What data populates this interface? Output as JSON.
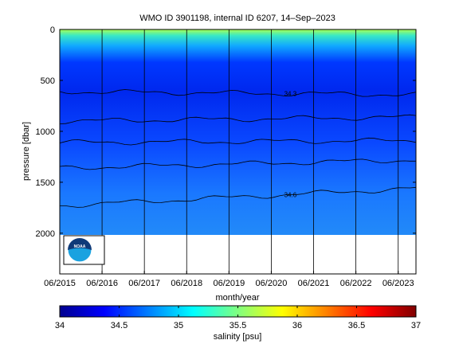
{
  "chart_data": {
    "type": "heatmap",
    "title": "WMO ID 3901198, internal ID 6207, 14–Sep–2023",
    "xlabel": "month/year",
    "ylabel": "pressure [dbar]",
    "x_ticks": [
      "06/2015",
      "06/2016",
      "06/2017",
      "06/2018",
      "06/2019",
      "06/2020",
      "06/2021",
      "06/2022",
      "06/2023"
    ],
    "x_tick_years": [
      2015.42,
      2016.42,
      2017.42,
      2018.42,
      2019.42,
      2020.42,
      2021.42,
      2022.42,
      2023.42
    ],
    "xlim": [
      2015.42,
      2023.84
    ],
    "y_ticks": [
      0,
      500,
      1000,
      1500,
      2000
    ],
    "ylim": [
      2400,
      0
    ],
    "y_reversed": true,
    "grid": "vertical lines at x ticks",
    "colorbar": {
      "label": "salinity [psu]",
      "range": [
        34,
        37
      ],
      "ticks": [
        "34",
        "34.5",
        "35",
        "35.5",
        "36",
        "36.5",
        "37"
      ],
      "colormap": "jet"
    },
    "profile_max_pressure": 2000,
    "contour_lines": [
      {
        "level": 34.3,
        "label": "34.3",
        "pressure_at_start": 610,
        "pressure_at_end": 640
      },
      {
        "level": 34.35,
        "label": "",
        "pressure_at_start": 900,
        "pressure_at_end": 860
      },
      {
        "level": 34.4,
        "label": "",
        "pressure_at_start": 1110,
        "pressure_at_end": 1090
      },
      {
        "level": 34.45,
        "label": "",
        "pressure_at_start": 1360,
        "pressure_at_end": 1280
      },
      {
        "level": 34.6,
        "label": "34.6",
        "pressure_at_start": 1730,
        "pressure_at_end": 1560
      }
    ],
    "logo": "NOAA"
  }
}
